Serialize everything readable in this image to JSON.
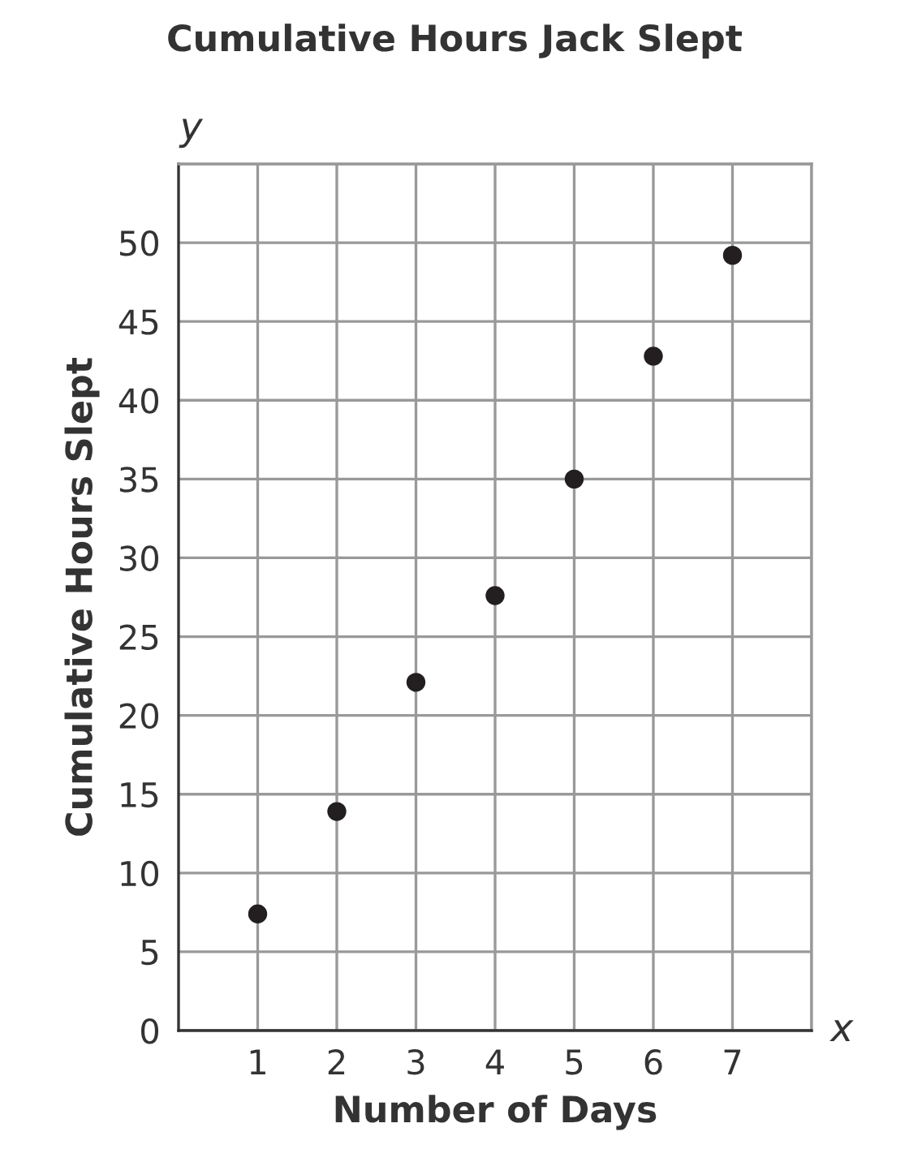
{
  "chart_data": {
    "type": "scatter",
    "title": "Cumulative Hours Jack Slept",
    "xlabel": "Number of Days",
    "ylabel": "Cumulative Hours Slept",
    "annotations": [
      "x",
      "y"
    ],
    "x": [
      1,
      2,
      3,
      4,
      5,
      6,
      7
    ],
    "values": [
      7.4,
      13.9,
      22.1,
      27.6,
      35,
      42.8,
      49.2
    ],
    "color": "#231f20",
    "marker": "circle",
    "xlim": [
      0,
      8
    ],
    "ylim": [
      0,
      55
    ],
    "xticks": [
      1,
      2,
      3,
      4,
      5,
      6,
      7,
      {
        "value": 8,
        "label": null
      }
    ],
    "yticks": [
      0,
      5,
      10,
      15,
      20,
      25,
      30,
      35,
      40,
      45,
      50,
      {
        "value": 55,
        "label": null
      }
    ],
    "grid": true
  }
}
